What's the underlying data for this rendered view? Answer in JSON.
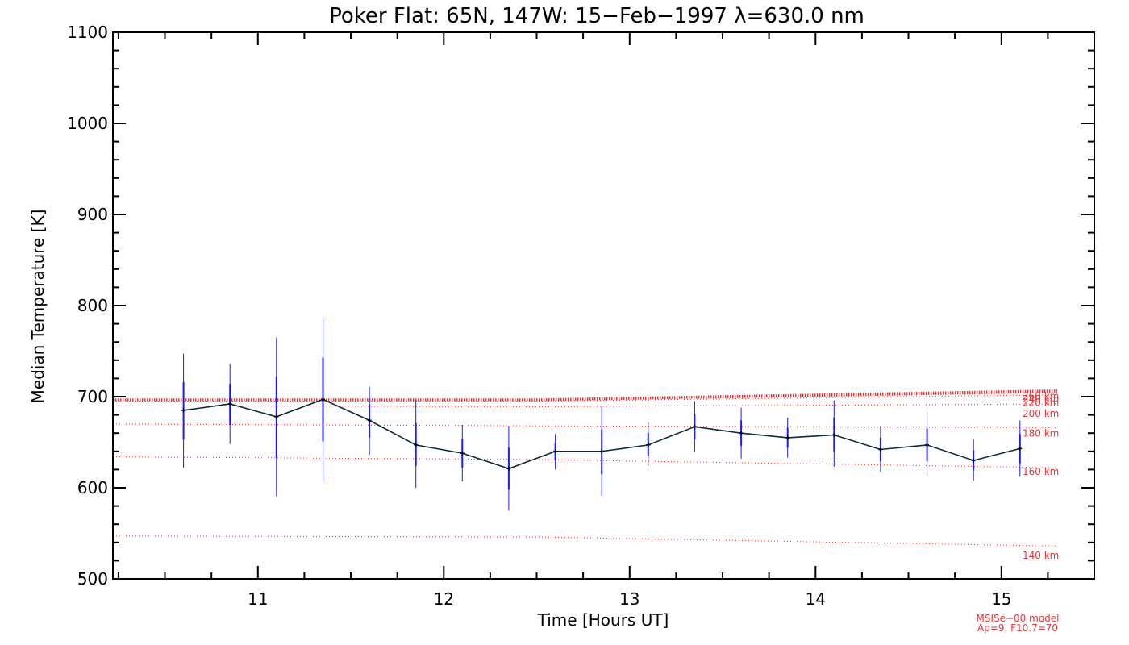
{
  "chart_data": {
    "type": "line",
    "title": "Poker Flat: 65N, 147W: 15−Feb−1997 λ=630.0 nm",
    "xlabel": "Time [Hours UT]",
    "ylabel": "Median Temperature [K]",
    "xlim": [
      10.22,
      15.5
    ],
    "ylim": [
      500,
      1100
    ],
    "x_ticks": [
      11,
      12,
      13,
      14,
      15
    ],
    "y_ticks": [
      500,
      600,
      700,
      800,
      900,
      1000,
      1100
    ],
    "x_tick_labels": [
      "11",
      "12",
      "13",
      "14",
      "15"
    ],
    "y_tick_labels": [
      "500",
      "600",
      "700",
      "800",
      "900",
      "1000",
      "1100"
    ],
    "colors": {
      "measured": "#0d2b3a",
      "error_bars": "#1a1aff",
      "model": "#e8363a",
      "axes": "#000000"
    },
    "series": [
      {
        "x": [
          10.6,
          10.85,
          11.1,
          11.35,
          11.6,
          11.85,
          12.1,
          12.35,
          12.6,
          12.85,
          13.1,
          13.35,
          13.6,
          13.85,
          14.1,
          14.35,
          14.6,
          14.85,
          15.1
        ],
        "y": [
          685,
          692,
          678,
          697,
          674,
          647,
          638,
          621,
          640,
          640,
          647,
          667,
          660,
          655,
          658,
          642,
          647,
          630,
          643
        ],
        "error_outer": [
          [
            622,
            747
          ],
          [
            648,
            736
          ],
          [
            591,
            765
          ],
          [
            606,
            788
          ],
          [
            636,
            711
          ],
          [
            600,
            696
          ],
          [
            607,
            669
          ],
          [
            575,
            668
          ],
          [
            620,
            659
          ],
          [
            591,
            690
          ],
          [
            624,
            672
          ],
          [
            640,
            695
          ],
          [
            632,
            688
          ],
          [
            633,
            677
          ],
          [
            623,
            696
          ],
          [
            617,
            668
          ],
          [
            612,
            684
          ],
          [
            608,
            653
          ],
          [
            612,
            674
          ]
        ],
        "error_inner": [
          [
            653,
            716
          ],
          [
            669,
            714
          ],
          [
            633,
            722
          ],
          [
            651,
            743
          ],
          [
            655,
            692
          ],
          [
            624,
            671
          ],
          [
            622,
            654
          ],
          [
            598,
            644
          ],
          [
            630,
            649
          ],
          [
            615,
            664
          ],
          [
            635,
            660
          ],
          [
            653,
            681
          ],
          [
            646,
            674
          ],
          [
            644,
            666
          ],
          [
            640,
            677
          ],
          [
            629,
            655
          ],
          [
            629,
            665
          ],
          [
            619,
            641
          ],
          [
            627,
            659
          ]
        ]
      }
    ],
    "model_curves": [
      {
        "label": "140 km",
        "x": [
          10.22,
          12.5,
          15.3
        ],
        "y": [
          547,
          546,
          536
        ],
        "label_y": 522
      },
      {
        "label": "160 km",
        "x": [
          10.22,
          12.5,
          15.3
        ],
        "y": [
          634,
          631,
          622
        ],
        "label_y": 614
      },
      {
        "label": "180 km",
        "x": [
          10.22,
          12.5,
          15.3
        ],
        "y": [
          670,
          668,
          666
        ],
        "label_y": 656
      },
      {
        "label": "200 km",
        "x": [
          10.22,
          12.5,
          15.3
        ],
        "y": [
          690,
          689,
          692
        ],
        "label_y": 678
      },
      {
        "label": "220 km",
        "x": [
          10.22,
          12.5,
          15.3
        ],
        "y": [
          695,
          695,
          702
        ],
        "label_y": 690
      },
      {
        "label": "240 km",
        "x": [
          10.22,
          12.5,
          15.3
        ],
        "y": [
          696,
          696,
          705
        ],
        "label_y": 694
      },
      {
        "label": "260 km",
        "x": [
          10.22,
          12.5,
          15.3
        ],
        "y": [
          697,
          697,
          707
        ],
        "label_y": 697
      }
    ],
    "model_note": [
      "MSISe−00 model",
      "Ap=9, F10.7=70"
    ],
    "grid": false,
    "legend": "none"
  }
}
